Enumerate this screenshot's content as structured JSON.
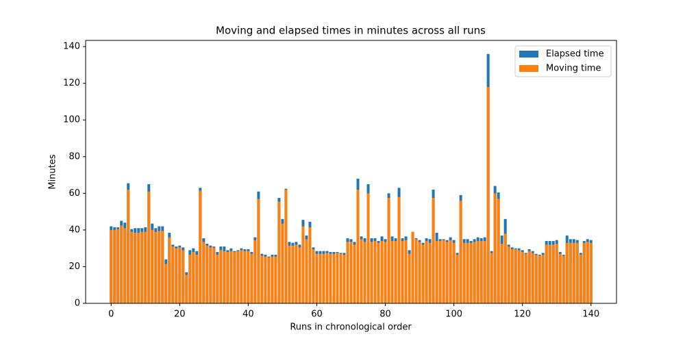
{
  "chart_data": {
    "type": "bar",
    "title": "Moving and elapsed times in minutes across all runs",
    "xlabel": "Runs in chronological order",
    "ylabel": "Minutes",
    "x": [
      0,
      1,
      2,
      3,
      4,
      5,
      6,
      7,
      8,
      9,
      10,
      11,
      12,
      13,
      14,
      15,
      16,
      17,
      18,
      19,
      20,
      21,
      22,
      23,
      24,
      25,
      26,
      27,
      28,
      29,
      30,
      31,
      32,
      33,
      34,
      35,
      36,
      37,
      38,
      39,
      40,
      41,
      42,
      43,
      44,
      45,
      46,
      47,
      48,
      49,
      50,
      51,
      52,
      53,
      54,
      55,
      56,
      57,
      58,
      59,
      60,
      61,
      62,
      63,
      64,
      65,
      66,
      67,
      68,
      69,
      70,
      71,
      72,
      73,
      74,
      75,
      76,
      77,
      78,
      79,
      80,
      81,
      82,
      83,
      84,
      85,
      86,
      87,
      88,
      89,
      90,
      91,
      92,
      93,
      94,
      95,
      96,
      97,
      98,
      99,
      100,
      101,
      102,
      103,
      104,
      105,
      106,
      107,
      108,
      109,
      110,
      111,
      112,
      113,
      114,
      115,
      116,
      117,
      118,
      119,
      120,
      121,
      122,
      123,
      124,
      125,
      126,
      127,
      128,
      129,
      130,
      131,
      132,
      133,
      134,
      135,
      136,
      137,
      138,
      139,
      140
    ],
    "series": [
      {
        "name": "Elapsed time",
        "color": "#1f77b4",
        "values": [
          42,
          41.5,
          41.5,
          45,
          44,
          65.5,
          40.5,
          41,
          41,
          41,
          41.5,
          65,
          43.5,
          41,
          42,
          42,
          24,
          38.5,
          32,
          31,
          31.5,
          30.5,
          17,
          29,
          30,
          28.5,
          63,
          35.5,
          32.5,
          31.5,
          31,
          28,
          31,
          31,
          29,
          30,
          28.5,
          29,
          30,
          29.5,
          29.5,
          28,
          36,
          61,
          27,
          26.5,
          25.5,
          26.5,
          26.5,
          57.5,
          46,
          62.5,
          33.5,
          33,
          33.5,
          32,
          45.5,
          37,
          44.5,
          30.5,
          28.5,
          28.5,
          28.5,
          28.5,
          28,
          28,
          28,
          27.5,
          27.5,
          35.5,
          35,
          33.5,
          68,
          36.5,
          35.5,
          65,
          35.5,
          35.5,
          34,
          36.5,
          35,
          60,
          36.5,
          35.5,
          63,
          35.5,
          36.5,
          29,
          39,
          35.5,
          34.5,
          33,
          35.5,
          35,
          62,
          38.5,
          35,
          35,
          34.5,
          36,
          34.5,
          27.5,
          59,
          35,
          35,
          34,
          35,
          36,
          35.5,
          36,
          136,
          28.5,
          64,
          60.5,
          37,
          46,
          32,
          30.5,
          30,
          30,
          29,
          27.5,
          29.5,
          28.5,
          27,
          26.5,
          27.5,
          34,
          34,
          34,
          34.5,
          28,
          26.5,
          37,
          35,
          35,
          34.5,
          27.5,
          34,
          35,
          34.5
        ]
      },
      {
        "name": "Moving time",
        "color": "#ff7f0e",
        "values": [
          40,
          40,
          40.5,
          42.5,
          41,
          62,
          39,
          38.5,
          38.5,
          39,
          39,
          61,
          40,
          39,
          39.5,
          39.5,
          21.5,
          36,
          31,
          30,
          30.5,
          29,
          15.5,
          26.5,
          28,
          26.5,
          61.5,
          33.5,
          31.5,
          30.5,
          30.5,
          26.5,
          29,
          28.5,
          28,
          28.5,
          28,
          28.5,
          29,
          28.5,
          28.5,
          27,
          34.5,
          57,
          26,
          25.5,
          25,
          25.5,
          25.5,
          55.5,
          43.5,
          62,
          31.5,
          31.5,
          32,
          30.5,
          42,
          35,
          41.5,
          29.5,
          27,
          27,
          27,
          27.5,
          27,
          27,
          27.5,
          27,
          26.5,
          33.5,
          33.5,
          32,
          62,
          35,
          33.5,
          60,
          33.5,
          34,
          33,
          34,
          33.5,
          57.5,
          34,
          34,
          58,
          34,
          34.5,
          27,
          39,
          35,
          33.5,
          32,
          34,
          33,
          57.5,
          34,
          34,
          34.5,
          33.5,
          34.5,
          33,
          26.5,
          56,
          33,
          33,
          33,
          33.5,
          34,
          34,
          34,
          118,
          27.5,
          60,
          57,
          32.5,
          38,
          31,
          29.5,
          29.5,
          29,
          28,
          27,
          28.5,
          27.5,
          26.5,
          26,
          26.5,
          32,
          32,
          32,
          32.5,
          27,
          26,
          33,
          33,
          33,
          33,
          26.5,
          33,
          33.5,
          33
        ]
      }
    ],
    "xlim": [
      -7.44,
      147.44
    ],
    "xticks": [
      0,
      20,
      40,
      60,
      80,
      100,
      120,
      140
    ],
    "ylim": [
      0,
      143.4
    ],
    "yticks": [
      0,
      20,
      40,
      60,
      80,
      100,
      120,
      140
    ],
    "legend": "upper right"
  }
}
